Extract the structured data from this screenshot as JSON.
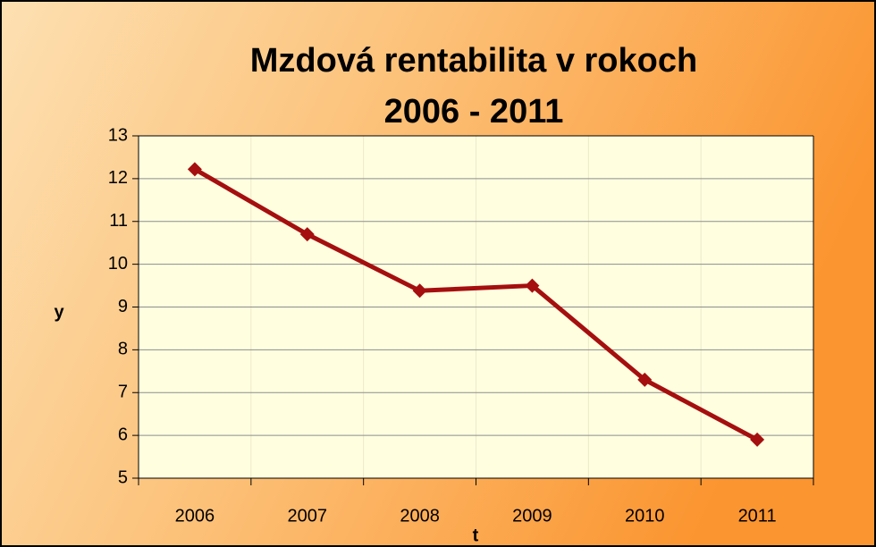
{
  "chart_data": {
    "type": "line",
    "title": [
      "Mzdová rentabilita v rokoch",
      "2006 - 2011"
    ],
    "x_label": "t",
    "y_label": "y",
    "categories": [
      "2006",
      "2007",
      "2008",
      "2009",
      "2010",
      "2011"
    ],
    "series": [
      {
        "name": "y",
        "color": "#a50f0f",
        "values": [
          12.22,
          10.7,
          9.38,
          9.5,
          7.3,
          5.9
        ]
      }
    ],
    "ylim": [
      5,
      13
    ],
    "yticks": [
      5,
      6,
      7,
      8,
      9,
      10,
      11,
      12,
      13
    ],
    "grid": true
  }
}
